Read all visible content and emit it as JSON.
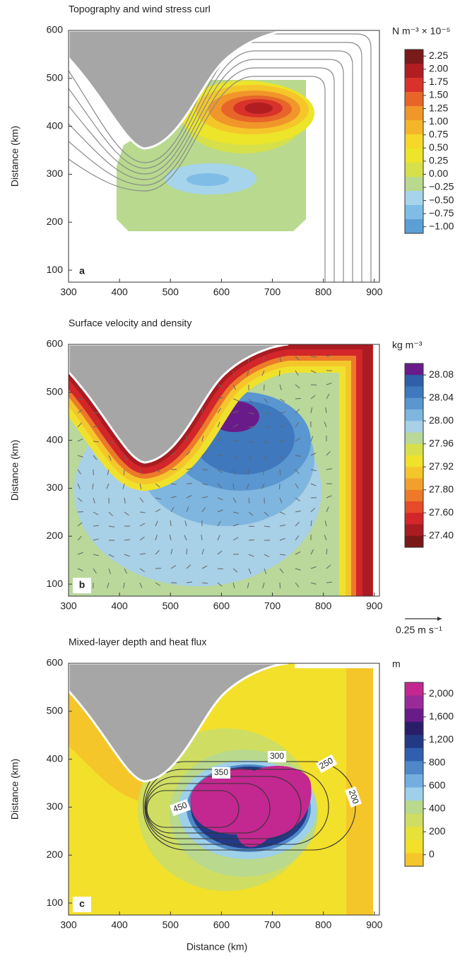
{
  "chart_data": [
    {
      "type": "contour",
      "title": "Topography and wind stress curl",
      "ylabel": "Distance (km)",
      "panel_label": "a",
      "xlim": [
        300,
        910
      ],
      "ylim": [
        75,
        600
      ],
      "xticks": [
        300,
        400,
        500,
        600,
        700,
        800,
        900
      ],
      "yticks": [
        100,
        200,
        300,
        400,
        500,
        600
      ],
      "colorbar": {
        "label": "N m⁻³ × 10⁻⁵",
        "ticks": [
          2.25,
          {
            "value": 2,
            "label": "2.00"
          },
          1.75,
          {
            "value": 1.5,
            "label": "1.50"
          },
          1.25,
          {
            "value": 1,
            "label": "1.00"
          },
          0.75,
          {
            "value": 0.5,
            "label": "0.50"
          },
          0.25,
          {
            "value": 0,
            "label": "0.00"
          },
          {
            "value": -0.25,
            "label": "−0.25"
          },
          {
            "value": -0.5,
            "label": "−0.50"
          },
          {
            "value": -0.75,
            "label": "−0.75"
          },
          {
            "value": -1,
            "label": "−1.00"
          }
        ],
        "colors": [
          "#7a1a1a",
          "#b01e22",
          "#d8322a",
          "#e8652a",
          "#f0962a",
          "#f5b52a",
          "#f5d82a",
          "#ece52a",
          "#d6e04a",
          "#b8d98e",
          "#a6d4ea",
          "#7fbde6",
          "#5c9fd6"
        ]
      }
    },
    {
      "type": "contour",
      "title": "Surface velocity and density",
      "ylabel": "Distance (km)",
      "panel_label": "b",
      "xlim": [
        300,
        910
      ],
      "ylim": [
        75,
        600
      ],
      "xticks": [
        300,
        400,
        500,
        600,
        700,
        800,
        900
      ],
      "yticks": [
        100,
        200,
        300,
        400,
        500,
        600
      ],
      "vector_scale_label": "0.25 m s⁻¹",
      "colorbar": {
        "label": "kg m⁻³",
        "ticks": [
          28.08,
          28.04,
          {
            "value": 28,
            "label": "28.00"
          },
          27.96,
          27.92,
          {
            "value": 27.8,
            "label": "27.80"
          },
          {
            "value": 27.6,
            "label": "27.60"
          },
          {
            "value": 27.4,
            "label": "27.40"
          }
        ],
        "colors": [
          "#6a1b8a",
          "#2e5fa8",
          "#3f78bd",
          "#5a96d0",
          "#7fb6e0",
          "#a8d0e6",
          "#b9d89a",
          "#d7e04c",
          "#f0e22c",
          "#f5c62c",
          "#f2a02c",
          "#ec7a2a",
          "#e54a2a",
          "#d2262a",
          "#a81c22",
          "#7a1818"
        ]
      }
    },
    {
      "type": "contour",
      "title": "Mixed-layer depth and heat flux",
      "ylabel": "Distance (km)",
      "xlabel": "Distance (km)",
      "panel_label": "c",
      "xlim": [
        300,
        910
      ],
      "ylim": [
        75,
        600
      ],
      "xticks": [
        300,
        400,
        500,
        600,
        700,
        800,
        900
      ],
      "yticks": [
        100,
        200,
        300,
        400,
        500,
        600
      ],
      "contour_labels": [
        350,
        300,
        250,
        200,
        450
      ],
      "colorbar": {
        "label": "m",
        "ticks": [
          {
            "value": 2000,
            "label": "2,000"
          },
          {
            "value": 1600,
            "label": "1,600"
          },
          {
            "value": 1200,
            "label": "1,200"
          },
          800,
          600,
          400,
          200,
          0
        ],
        "colors": [
          "#c2288f",
          "#9a2a9a",
          "#6a1b8a",
          "#2a1e6a",
          "#223a86",
          "#2f5fae",
          "#4f88c8",
          "#74aee0",
          "#9fd0ea",
          "#b8d98e",
          "#cfde62",
          "#e6e23a",
          "#f3e02a",
          "#f5c62a"
        ]
      }
    }
  ]
}
